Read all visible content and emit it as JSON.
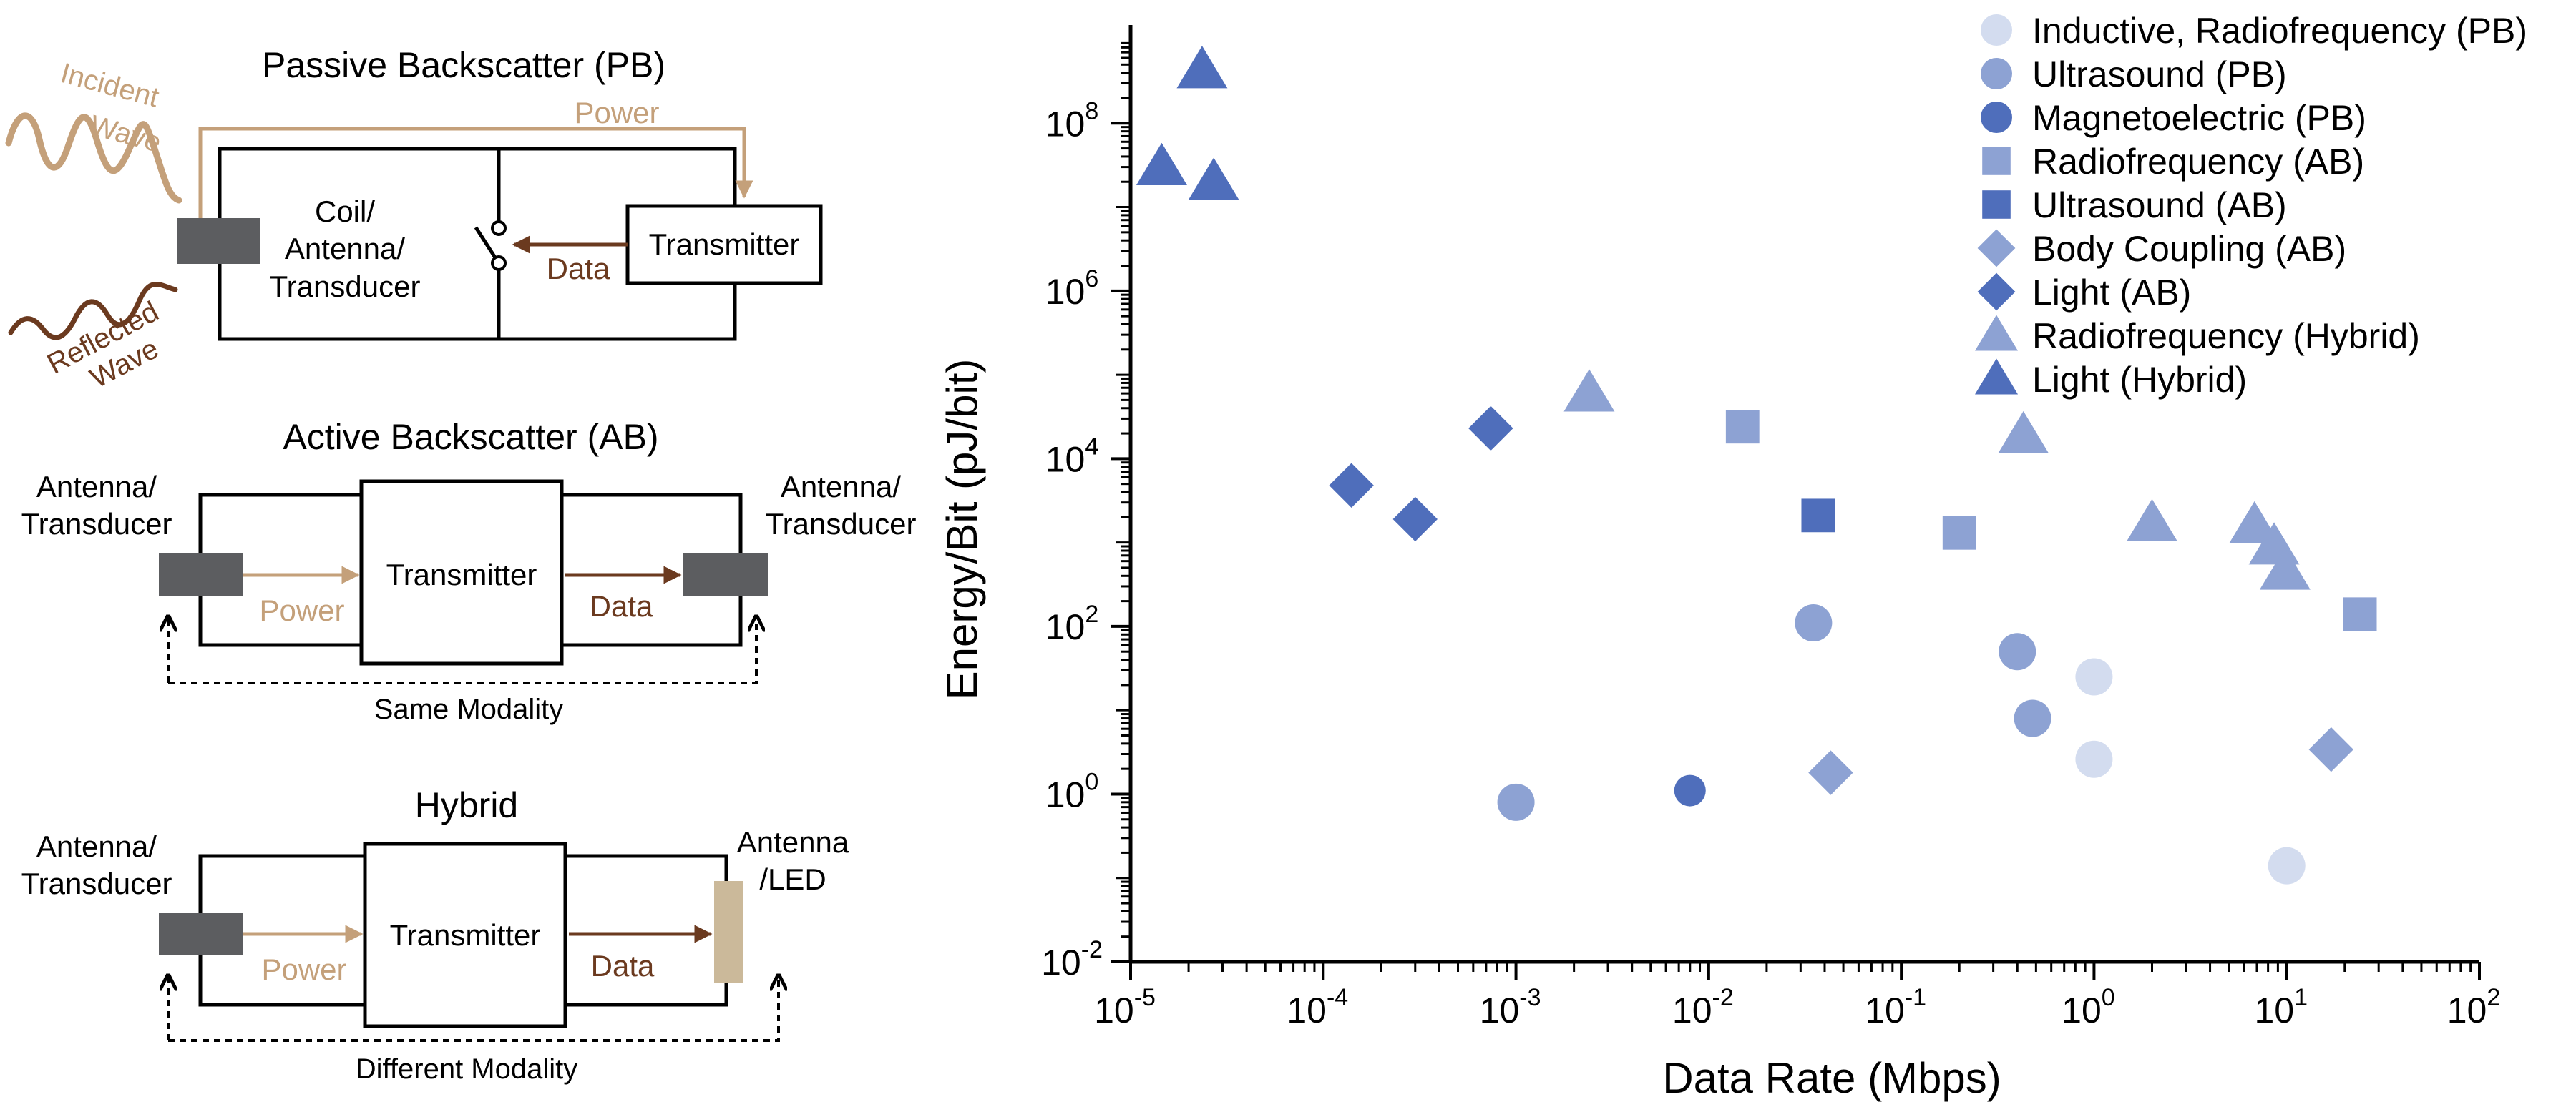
{
  "diagrams": {
    "pb": {
      "title": "Passive Backscatter (PB)",
      "incident": [
        "Incident",
        "Wave"
      ],
      "reflected": [
        "Reflected",
        "Wave"
      ],
      "power": "Power",
      "element": [
        "Coil/",
        "Antenna/",
        "Transducer"
      ],
      "data": "Data",
      "transmitter": "Transmitter"
    },
    "ab": {
      "title": "Active Backscatter (AB)",
      "left_label": [
        "Antenna/",
        "Transducer"
      ],
      "right_label": [
        "Antenna/",
        "Transducer"
      ],
      "transmitter": "Transmitter",
      "power": "Power",
      "data": "Data",
      "modality": "Same Modality"
    },
    "hybrid": {
      "title": "Hybrid",
      "left_label": [
        "Antenna/",
        "Transducer"
      ],
      "right_label": [
        "Antenna",
        "/LED"
      ],
      "transmitter": "Transmitter",
      "power": "Power",
      "data": "Data",
      "modality": "Different Modality"
    }
  },
  "colors": {
    "power": "#c4a07a",
    "data": "#6b3a1f",
    "device": "#5c5d60",
    "led": "#cbb99a"
  },
  "chart_data": {
    "type": "scatter",
    "xlabel": "Data Rate (Mbps)",
    "ylabel": "Energy/Bit (pJ/bit)",
    "x_scale": "log",
    "y_scale": "log",
    "xlim": [
      1e-05,
      100
    ],
    "ylim": [
      0.01,
      1000000000
    ],
    "x_ticks": [
      {
        "base": "10",
        "exp": "-5",
        "value": 1e-05
      },
      {
        "base": "10",
        "exp": "-4",
        "value": 0.0001
      },
      {
        "base": "10",
        "exp": "-3",
        "value": 0.001
      },
      {
        "base": "10",
        "exp": "-2",
        "value": 0.01
      },
      {
        "base": "10",
        "exp": "-1",
        "value": 0.1
      },
      {
        "base": "10",
        "exp": "0",
        "value": 1
      },
      {
        "base": "10",
        "exp": "1",
        "value": 10
      },
      {
        "base": "10",
        "exp": "2",
        "value": 100
      }
    ],
    "y_ticks": [
      {
        "base": "10",
        "exp": "-2",
        "value": 0.01
      },
      {
        "base": "10",
        "exp": "0",
        "value": 1
      },
      {
        "base": "10",
        "exp": "2",
        "value": 100
      },
      {
        "base": "10",
        "exp": "4",
        "value": 10000
      },
      {
        "base": "10",
        "exp": "6",
        "value": 1000000
      },
      {
        "base": "10",
        "exp": "8",
        "value": 100000000
      }
    ],
    "grid": false,
    "legend_position": "top-right",
    "series": [
      {
        "name": "Inductive, Radiofrequency (PB)",
        "marker": "circle",
        "color": "#d3dcef",
        "points": [
          {
            "x": 1.0,
            "y": 25
          },
          {
            "x": 1.0,
            "y": 2.6
          },
          {
            "x": 10,
            "y": 0.14
          }
        ]
      },
      {
        "name": "Ultrasound (PB)",
        "marker": "circle",
        "color": "#8da2d3",
        "points": [
          {
            "x": 0.001,
            "y": 0.8
          },
          {
            "x": 0.035,
            "y": 110
          },
          {
            "x": 0.4,
            "y": 50
          },
          {
            "x": 0.48,
            "y": 8
          }
        ]
      },
      {
        "name": "Magnetoelectric (PB)",
        "marker": "circle",
        "color": "#4f6ebb",
        "points": [
          {
            "x": 0.008,
            "y": 1.1
          }
        ]
      },
      {
        "name": "Radiofrequency (AB)",
        "marker": "square",
        "color": "#8da2d3",
        "points": [
          {
            "x": 0.015,
            "y": 24000
          },
          {
            "x": 0.2,
            "y": 1300
          },
          {
            "x": 24,
            "y": 140
          }
        ]
      },
      {
        "name": "Ultrasound (AB)",
        "marker": "square",
        "color": "#4f6ebb",
        "points": [
          {
            "x": 0.037,
            "y": 2100
          }
        ]
      },
      {
        "name": "Body Coupling (AB)",
        "marker": "diamond",
        "color": "#8da2d3",
        "points": [
          {
            "x": 0.043,
            "y": 1.8
          },
          {
            "x": 17,
            "y": 3.4
          }
        ]
      },
      {
        "name": "Light (AB)",
        "marker": "diamond",
        "color": "#4f6ebb",
        "points": [
          {
            "x": 0.00014,
            "y": 4800
          },
          {
            "x": 0.0003,
            "y": 1900
          },
          {
            "x": 0.00074,
            "y": 23000
          }
        ]
      },
      {
        "name": "Radiofrequency (Hybrid)",
        "marker": "triangle",
        "color": "#8da2d3",
        "points": [
          {
            "x": 0.0024,
            "y": 60000
          },
          {
            "x": 0.43,
            "y": 19000
          },
          {
            "x": 2.0,
            "y": 1700
          },
          {
            "x": 6.8,
            "y": 1600
          },
          {
            "x": 8.6,
            "y": 900
          },
          {
            "x": 9.8,
            "y": 450
          }
        ]
      },
      {
        "name": "Light (Hybrid)",
        "marker": "triangle",
        "color": "#4f6ebb",
        "points": [
          {
            "x": 1.45e-05,
            "y": 30000000
          },
          {
            "x": 2.35e-05,
            "y": 430000000
          },
          {
            "x": 2.7e-05,
            "y": 20000000
          }
        ]
      }
    ]
  }
}
